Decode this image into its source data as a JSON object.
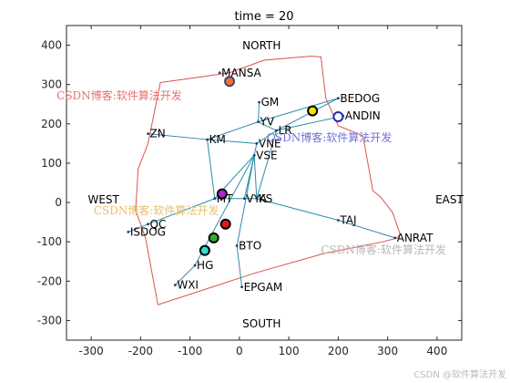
{
  "chart_data": {
    "type": "scatter",
    "title": "time = 20",
    "xlim": [
      -350,
      450
    ],
    "ylim": [
      -350,
      450
    ],
    "xticks": [
      -300,
      -200,
      -100,
      0,
      100,
      200,
      300,
      400
    ],
    "yticks": [
      -300,
      -200,
      -100,
      0,
      100,
      200,
      300,
      400
    ],
    "grid": false,
    "region_color": "#d9534f",
    "link_color": "#2a8bab",
    "boundary": [
      [
        -160,
        305
      ],
      [
        -85,
        318
      ],
      [
        -20,
        330
      ],
      [
        50,
        362
      ],
      [
        145,
        372
      ],
      [
        165,
        370
      ],
      [
        175,
        265
      ],
      [
        200,
        195
      ],
      [
        250,
        170
      ],
      [
        270,
        30
      ],
      [
        285,
        15
      ],
      [
        310,
        -25
      ],
      [
        325,
        -80
      ],
      [
        320,
        -90
      ],
      [
        290,
        -100
      ],
      [
        170,
        -130
      ],
      [
        30,
        -180
      ],
      [
        -165,
        -260
      ],
      [
        -190,
        -90
      ],
      [
        -210,
        -20
      ],
      [
        -205,
        85
      ],
      [
        -185,
        150
      ]
    ],
    "compass": [
      {
        "text": "NORTH",
        "x": 45,
        "y": 390
      },
      {
        "text": "SOUTH",
        "x": 45,
        "y": -318
      },
      {
        "text": "WEST",
        "x": -275,
        "y": -2
      },
      {
        "text": "EAST",
        "x": 425,
        "y": -2
      }
    ],
    "nodes": [
      {
        "name": "MANSA",
        "x": -40,
        "y": 330
      },
      {
        "name": "GM",
        "x": 40,
        "y": 255
      },
      {
        "name": "BEDOG",
        "x": 200,
        "y": 265
      },
      {
        "name": "ANDIN",
        "x": 210,
        "y": 220
      },
      {
        "name": "ZN",
        "x": -185,
        "y": 175
      },
      {
        "name": "KM",
        "x": -65,
        "y": 160
      },
      {
        "name": "YV",
        "x": 38,
        "y": 205
      },
      {
        "name": "LR",
        "x": 75,
        "y": 183
      },
      {
        "name": "VNE",
        "x": 35,
        "y": 150
      },
      {
        "name": "VSE",
        "x": 30,
        "y": 120
      },
      {
        "name": "MT",
        "x": -50,
        "y": 10
      },
      {
        "name": "VYA",
        "x": 10,
        "y": 10
      },
      {
        "name": "KS",
        "x": 35,
        "y": 10
      },
      {
        "name": "TAJ",
        "x": 200,
        "y": -45
      },
      {
        "name": "ANRAT",
        "x": 315,
        "y": -90
      },
      {
        "name": "QC",
        "x": -185,
        "y": -55
      },
      {
        "name": "ISDOG",
        "x": -225,
        "y": -75
      },
      {
        "name": "BTO",
        "x": -5,
        "y": -110
      },
      {
        "name": "HG",
        "x": -90,
        "y": -160
      },
      {
        "name": "WXI",
        "x": -130,
        "y": -210
      },
      {
        "name": "EPGAM",
        "x": 5,
        "y": -215
      }
    ],
    "links": [
      [
        "GM",
        "YV"
      ],
      [
        "YV",
        "BEDOG"
      ],
      [
        "YV",
        "LR"
      ],
      [
        "LR",
        "ANDIN"
      ],
      [
        "LR",
        "BEDOG"
      ],
      [
        "YV",
        "KM"
      ],
      [
        "KM",
        "ZN"
      ],
      [
        "KM",
        "VNE"
      ],
      [
        "VNE",
        "LR"
      ],
      [
        "VNE",
        "VSE"
      ],
      [
        "KM",
        "MT"
      ],
      [
        "MT",
        "VYA"
      ],
      [
        "VYA",
        "KS"
      ],
      [
        "KS",
        "LR"
      ],
      [
        "VSE",
        "MT"
      ],
      [
        "VSE",
        "VYA"
      ],
      [
        "VSE",
        "KS"
      ],
      [
        "VSE",
        "BTO"
      ],
      [
        "VSE",
        "HG"
      ],
      [
        "BTO",
        "EPGAM"
      ],
      [
        "MT",
        "QC"
      ],
      [
        "QC",
        "ISDOG"
      ],
      [
        "KS",
        "TAJ"
      ],
      [
        "TAJ",
        "ANRAT"
      ],
      [
        "HG",
        "WXI"
      ]
    ],
    "agents": [
      {
        "x": -20,
        "y": 308,
        "fill": "#ff6a2a",
        "edge": "#2f4f7f"
      },
      {
        "x": 148,
        "y": 233,
        "fill": "#f2e600",
        "edge": "#000000"
      },
      {
        "x": 200,
        "y": 218,
        "fill": "#ffffff",
        "edge": "#1a2fb3"
      },
      {
        "x": -35,
        "y": 22,
        "fill": "#b026c9",
        "edge": "#000000"
      },
      {
        "x": -28,
        "y": -55,
        "fill": "#d61d1d",
        "edge": "#000000"
      },
      {
        "x": -52,
        "y": -90,
        "fill": "#2fae2f",
        "edge": "#000000"
      },
      {
        "x": -70,
        "y": -122,
        "fill": "#2ce0d2",
        "edge": "#000000"
      }
    ]
  },
  "watermarks": [
    {
      "text": "CSDN博客:软件算法开发",
      "x": -370,
      "y": 262,
      "color": "#e87070"
    },
    {
      "text": "CSDN博客:软件算法开发",
      "x": 55,
      "y": 155,
      "color": "#7070d8"
    },
    {
      "text": "CSDN博客:软件算法开发",
      "x": -295,
      "y": -30,
      "color": "#e8c070"
    },
    {
      "text": "CSDN博客:软件算法开发",
      "x": 165,
      "y": -130,
      "color": "#b8b8b8"
    }
  ],
  "credit": "CSDN @软件算法开发"
}
